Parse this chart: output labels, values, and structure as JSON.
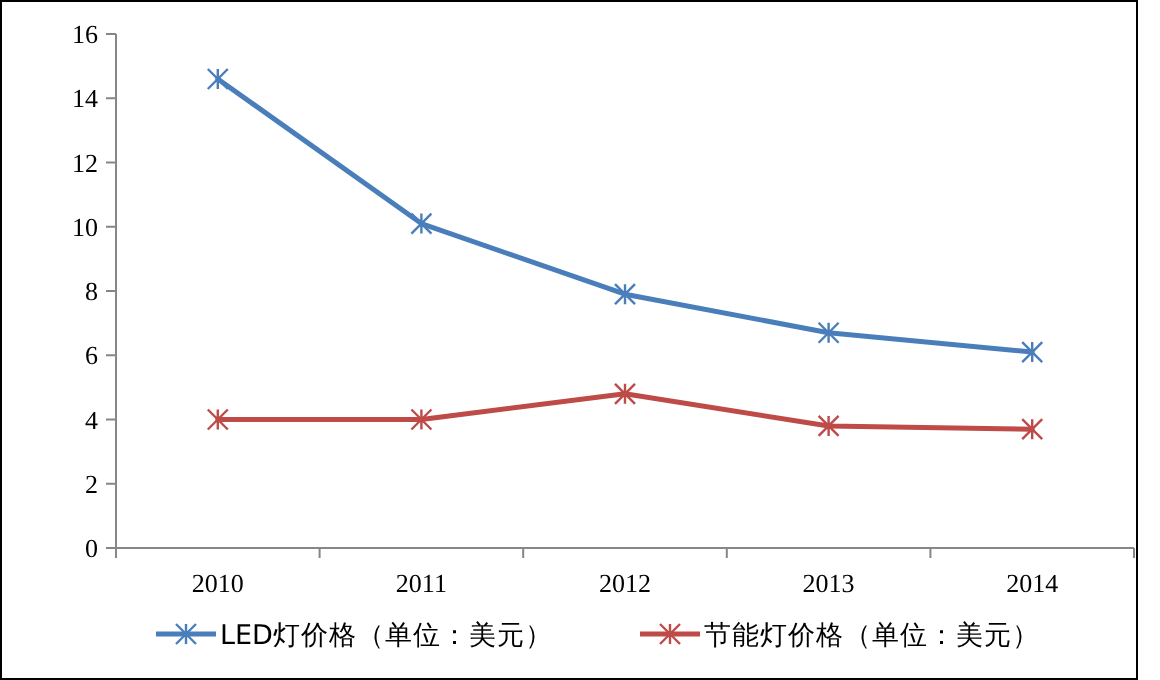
{
  "chart_data": {
    "type": "line",
    "categories": [
      "2010",
      "2011",
      "2012",
      "2013",
      "2014"
    ],
    "series": [
      {
        "name": "LED灯价格（单位：美元）",
        "color": "#4a7ebb",
        "values": [
          14.6,
          10.1,
          7.9,
          6.7,
          6.1
        ]
      },
      {
        "name": "节能灯价格（单位：美元）",
        "color": "#be4b48",
        "values": [
          4.0,
          4.0,
          4.8,
          3.8,
          3.7
        ]
      }
    ],
    "ylim": [
      0,
      16
    ],
    "yticks": [
      0,
      2,
      4,
      6,
      8,
      10,
      12,
      14,
      16
    ],
    "grid": false,
    "legend": "bottom",
    "marker": "cross"
  }
}
